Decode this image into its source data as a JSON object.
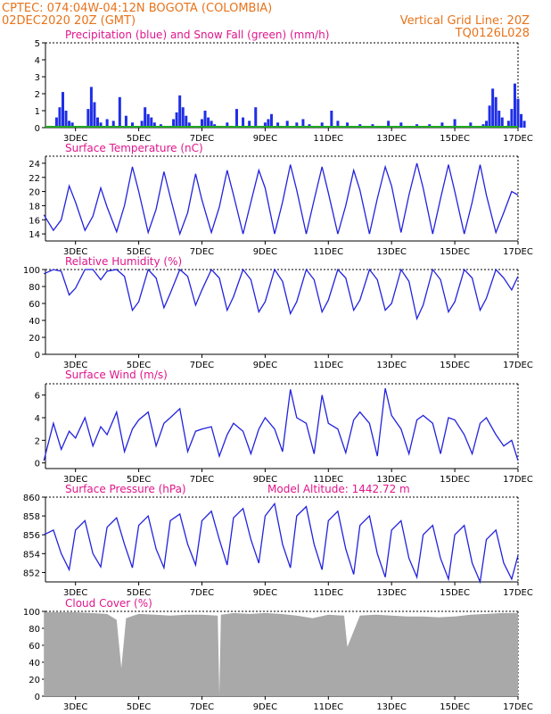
{
  "header": {
    "line1": "CPTEC:   074:04W-04:12N   BOGOTA (COLOMBIA)",
    "line2_left": "02DEC2020 20Z (GMT)",
    "line2_right": "Vertical Grid Line: 20Z",
    "line3_right": "TQ0126L028"
  },
  "colors": {
    "header": "#e8731a",
    "panel_title": "#e0168c",
    "line": "#2222dd",
    "precip": "#1f2fe6",
    "snow": "#22aa22",
    "cloud": "#a9a9a9"
  },
  "x_ticks": [
    "3DEC",
    "5DEC",
    "7DEC",
    "9DEC",
    "11DEC",
    "13DEC",
    "15DEC",
    "17DEC"
  ],
  "chart_data": [
    {
      "type": "bar",
      "title": "Precipitation (blue) and Snow Fall (green) (mm/h)",
      "ylim": [
        0,
        5
      ],
      "yticks": [
        0,
        1,
        2,
        3,
        4,
        5
      ],
      "series": [
        {
          "name": "Precipitation (blue)",
          "x_day": [
            2.4,
            2.5,
            2.6,
            2.7,
            2.8,
            2.9,
            3.4,
            3.5,
            3.6,
            3.7,
            3.8,
            4.0,
            4.2,
            4.4,
            4.6,
            4.8,
            5.1,
            5.2,
            5.3,
            5.4,
            5.5,
            5.7,
            6.1,
            6.2,
            6.3,
            6.4,
            6.5,
            6.6,
            7.0,
            7.1,
            7.2,
            7.3,
            7.4,
            7.8,
            8.1,
            8.3,
            8.5,
            8.7,
            9.0,
            9.1,
            9.2,
            9.4,
            9.7,
            10.0,
            10.2,
            10.4,
            10.8,
            11.1,
            11.3,
            11.6,
            12.0,
            12.4,
            12.9,
            13.3,
            13.8,
            14.2,
            14.6,
            15.0,
            15.5,
            15.9,
            16.0,
            16.1,
            16.2,
            16.3,
            16.4,
            16.5,
            16.7,
            16.8,
            16.9,
            17.0,
            17.1,
            17.2
          ],
          "values": [
            0.6,
            1.2,
            2.1,
            1.0,
            0.4,
            0.3,
            1.1,
            2.4,
            1.5,
            0.6,
            0.3,
            0.5,
            0.4,
            1.8,
            0.7,
            0.3,
            0.4,
            1.2,
            0.8,
            0.6,
            0.3,
            0.2,
            0.5,
            0.9,
            1.9,
            1.2,
            0.7,
            0.3,
            0.5,
            1.0,
            0.6,
            0.4,
            0.2,
            0.3,
            1.1,
            0.6,
            0.4,
            1.2,
            0.3,
            0.5,
            0.8,
            0.3,
            0.4,
            0.3,
            0.5,
            0.2,
            0.3,
            1.0,
            0.4,
            0.3,
            0.2,
            0.2,
            0.4,
            0.3,
            0.2,
            0.2,
            0.3,
            0.5,
            0.3,
            0.2,
            0.4,
            1.3,
            2.3,
            1.8,
            1.0,
            0.6,
            0.4,
            1.1,
            2.6,
            1.7,
            0.8,
            0.4
          ]
        },
        {
          "name": "Snow Fall (green)",
          "values": [
            0,
            0,
            0,
            0,
            0,
            0,
            0,
            0
          ]
        }
      ]
    },
    {
      "type": "line",
      "title": "Surface Temperature (nC)",
      "ylim": [
        13,
        25
      ],
      "yticks": [
        14,
        16,
        18,
        20,
        22,
        24
      ],
      "series": [
        {
          "name": "Surface Temperature",
          "x_day": [
            2.0,
            2.3,
            2.55,
            2.8,
            3.0,
            3.3,
            3.55,
            3.8,
            4.0,
            4.3,
            4.55,
            4.8,
            5.0,
            5.3,
            5.55,
            5.8,
            6.0,
            6.3,
            6.55,
            6.8,
            7.0,
            7.3,
            7.55,
            7.8,
            8.0,
            8.3,
            8.55,
            8.8,
            9.0,
            9.3,
            9.55,
            9.8,
            10.0,
            10.3,
            10.55,
            10.8,
            11.0,
            11.3,
            11.55,
            11.8,
            12.0,
            12.3,
            12.55,
            12.8,
            13.0,
            13.3,
            13.55,
            13.8,
            14.0,
            14.3,
            14.55,
            14.8,
            15.0,
            15.3,
            15.55,
            15.8,
            16.0,
            16.3,
            16.55,
            16.8,
            17.0
          ],
          "values": [
            16.7,
            14.5,
            16.0,
            20.8,
            18.5,
            14.5,
            16.5,
            20.5,
            17.8,
            14.3,
            18.0,
            23.5,
            20.0,
            14.2,
            17.5,
            22.8,
            19.2,
            14.0,
            17.0,
            22.5,
            18.8,
            14.2,
            17.8,
            23.0,
            19.5,
            14.0,
            18.5,
            23.0,
            20.5,
            14.0,
            18.5,
            23.8,
            20.2,
            14.0,
            18.8,
            23.5,
            19.8,
            14.0,
            18.0,
            23.0,
            20.2,
            14.0,
            19.0,
            23.5,
            20.8,
            14.2,
            19.5,
            24.0,
            20.5,
            14.0,
            19.0,
            23.8,
            20.0,
            14.0,
            18.5,
            23.8,
            19.5,
            14.2,
            17.0,
            20.0,
            19.5
          ]
        }
      ]
    },
    {
      "type": "line",
      "title": "Relative Humidity (%)",
      "ylim": [
        0,
        100
      ],
      "yticks": [
        0,
        20,
        40,
        60,
        80,
        100
      ],
      "series": [
        {
          "name": "Relative Humidity",
          "x_day": [
            2.0,
            2.3,
            2.55,
            2.8,
            3.0,
            3.3,
            3.55,
            3.8,
            4.0,
            4.3,
            4.55,
            4.8,
            5.0,
            5.3,
            5.55,
            5.8,
            6.0,
            6.3,
            6.55,
            6.8,
            7.0,
            7.3,
            7.55,
            7.8,
            8.0,
            8.3,
            8.55,
            8.8,
            9.0,
            9.3,
            9.55,
            9.8,
            10.0,
            10.3,
            10.55,
            10.8,
            11.0,
            11.3,
            11.55,
            11.8,
            12.0,
            12.3,
            12.55,
            12.8,
            13.0,
            13.3,
            13.55,
            13.8,
            14.0,
            14.3,
            14.55,
            14.8,
            15.0,
            15.3,
            15.55,
            15.8,
            16.0,
            16.3,
            16.55,
            16.8,
            17.0
          ],
          "values": [
            95,
            100,
            98,
            70,
            78,
            100,
            100,
            88,
            98,
            100,
            92,
            52,
            62,
            100,
            90,
            55,
            72,
            100,
            92,
            58,
            76,
            100,
            90,
            52,
            68,
            100,
            88,
            50,
            62,
            100,
            86,
            48,
            62,
            100,
            88,
            50,
            64,
            100,
            90,
            52,
            64,
            100,
            88,
            52,
            60,
            100,
            86,
            42,
            58,
            100,
            88,
            50,
            62,
            100,
            90,
            52,
            66,
            100,
            90,
            76,
            92
          ]
        }
      ]
    },
    {
      "type": "line",
      "title": "Surface Wind (m/s)",
      "ylim": [
        -0.5,
        7.0
      ],
      "yticks": [
        0,
        2,
        4,
        6
      ],
      "series": [
        {
          "name": "Surface Wind",
          "x_day": [
            2.0,
            2.3,
            2.55,
            2.8,
            3.0,
            3.3,
            3.55,
            3.8,
            4.0,
            4.3,
            4.55,
            4.8,
            5.0,
            5.3,
            5.55,
            5.8,
            6.0,
            6.3,
            6.55,
            6.8,
            7.0,
            7.3,
            7.55,
            7.8,
            8.0,
            8.3,
            8.55,
            8.8,
            9.0,
            9.3,
            9.55,
            9.8,
            10.0,
            10.3,
            10.55,
            10.8,
            11.0,
            11.3,
            11.55,
            11.8,
            12.0,
            12.3,
            12.55,
            12.8,
            13.0,
            13.3,
            13.55,
            13.8,
            14.0,
            14.3,
            14.55,
            14.8,
            15.0,
            15.3,
            15.55,
            15.8,
            16.0,
            16.3,
            16.55,
            16.8,
            17.0
          ],
          "values": [
            0.2,
            3.5,
            1.2,
            2.8,
            2.2,
            4.0,
            1.5,
            3.2,
            2.5,
            4.5,
            1.0,
            3.0,
            3.8,
            4.5,
            1.5,
            3.5,
            4.0,
            4.8,
            1.0,
            2.8,
            3.0,
            3.2,
            0.6,
            2.5,
            3.5,
            2.8,
            0.8,
            3.0,
            4.0,
            3.0,
            1.0,
            6.5,
            4.0,
            3.5,
            0.8,
            6.0,
            3.5,
            3.0,
            0.9,
            3.8,
            4.5,
            3.5,
            0.6,
            6.6,
            4.2,
            3.0,
            0.8,
            3.8,
            4.2,
            3.5,
            0.8,
            4.0,
            3.8,
            2.5,
            0.8,
            3.5,
            4.0,
            2.5,
            1.5,
            2.0,
            0.2
          ]
        }
      ],
      "arrows_note": ""
    },
    {
      "type": "line",
      "title": "Surface Pressure (hPa)",
      "annotation": "Model Altitude:  1442.72  m",
      "ylim": [
        851,
        860
      ],
      "yticks": [
        852,
        854,
        856,
        858,
        860
      ],
      "series": [
        {
          "name": "Surface Pressure",
          "x_day": [
            2.0,
            2.3,
            2.55,
            2.8,
            3.0,
            3.3,
            3.55,
            3.8,
            4.0,
            4.3,
            4.55,
            4.8,
            5.0,
            5.3,
            5.55,
            5.8,
            6.0,
            6.3,
            6.55,
            6.8,
            7.0,
            7.3,
            7.55,
            7.8,
            8.0,
            8.3,
            8.55,
            8.8,
            9.0,
            9.3,
            9.55,
            9.8,
            10.0,
            10.3,
            10.55,
            10.8,
            11.0,
            11.3,
            11.55,
            11.8,
            12.0,
            12.3,
            12.55,
            12.8,
            13.0,
            13.3,
            13.55,
            13.8,
            14.0,
            14.3,
            14.55,
            14.8,
            15.0,
            15.3,
            15.55,
            15.8,
            16.0,
            16.3,
            16.55,
            16.8,
            17.0
          ],
          "values": [
            856.0,
            856.5,
            854.0,
            852.3,
            856.5,
            857.5,
            854.0,
            852.6,
            856.8,
            857.8,
            855.0,
            852.5,
            857.0,
            858.0,
            854.5,
            852.5,
            857.5,
            858.2,
            855.0,
            852.8,
            857.5,
            858.5,
            855.5,
            852.8,
            857.8,
            858.8,
            855.5,
            853.0,
            858.0,
            859.3,
            855.0,
            852.5,
            858.0,
            859.0,
            855.0,
            852.3,
            857.5,
            858.5,
            854.5,
            851.8,
            857.0,
            858.0,
            854.0,
            851.5,
            856.5,
            857.5,
            853.5,
            851.5,
            856.0,
            857.0,
            853.5,
            851.3,
            856.0,
            857.0,
            853.0,
            851.0,
            855.5,
            856.5,
            853.0,
            851.3,
            853.8
          ]
        }
      ]
    },
    {
      "type": "area",
      "title": "Cloud Cover (%)",
      "ylim": [
        0,
        100
      ],
      "yticks": [
        0,
        20,
        40,
        60,
        80,
        100
      ],
      "series": [
        {
          "name": "Cloud Cover",
          "x_day": [
            2.0,
            2.5,
            3.0,
            3.5,
            4.0,
            4.3,
            4.45,
            4.6,
            5.0,
            5.5,
            6.0,
            6.5,
            7.0,
            7.5,
            7.55,
            7.6,
            8.0,
            8.5,
            9.0,
            9.5,
            10.0,
            10.5,
            11.0,
            11.5,
            11.6,
            12.0,
            12.5,
            13.0,
            13.5,
            14.0,
            14.5,
            15.0,
            15.5,
            16.0,
            16.5,
            17.0
          ],
          "values": [
            99,
            99,
            99,
            98,
            97,
            90,
            33,
            92,
            97,
            96,
            95,
            96,
            96,
            95,
            2,
            96,
            98,
            97,
            98,
            97,
            95,
            92,
            96,
            95,
            58,
            95,
            96,
            95,
            94,
            94,
            93,
            94,
            96,
            97,
            98,
            98
          ]
        }
      ]
    }
  ]
}
